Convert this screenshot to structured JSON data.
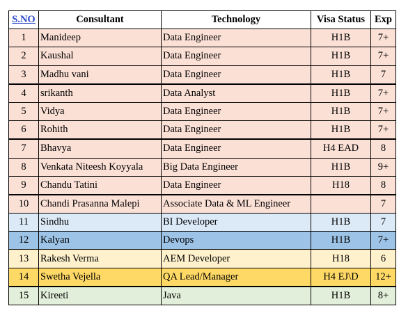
{
  "headers": {
    "sno": "S.NO",
    "consultant": "Consultant",
    "technology": "Technology",
    "visa": "Visa Status",
    "exp": "Exp"
  },
  "rows": [
    {
      "sno": "1",
      "name": "Manideep",
      "tech": "Data Engineer",
      "visa": "H1B",
      "exp": "7+",
      "color": "#fbe0d6"
    },
    {
      "sno": "2",
      "name": "Kaushal",
      "tech": "Data Engineer",
      "visa": "H1B",
      "exp": "7+",
      "color": "#fbe0d6"
    },
    {
      "sno": "3",
      "name": "Madhu vani",
      "tech": "Data Engineer",
      "visa": "H1B",
      "exp": "7",
      "color": "#fbe0d6"
    },
    {
      "sno": "4",
      "name": "srikanth",
      "tech": "Data Analyst",
      "visa": "H1B",
      "exp": "7+",
      "color": "#fbe0d6"
    },
    {
      "sno": "5",
      "name": "Vidya",
      "tech": "Data Engineer",
      "visa": "H1B",
      "exp": "7+",
      "color": "#fbe0d6"
    },
    {
      "sno": "6",
      "name": "Rohith",
      "tech": "Data Engineer",
      "visa": "H1B",
      "exp": "7+",
      "color": "#fbe0d6"
    },
    {
      "sno": "7",
      "name": "Bhavya",
      "tech": "Data Engineer",
      "visa": "H4 EAD",
      "exp": "8",
      "color": "#fbe0d6"
    },
    {
      "sno": "8",
      "name": "Venkata Niteesh Koyyala",
      "tech": "Big Data Engineer",
      "visa": "H1B",
      "exp": "9+",
      "color": "#fbe0d6"
    },
    {
      "sno": "9",
      "name": "Chandu Tatini",
      "tech": "Data Engineer",
      "visa": "H18",
      "exp": "8",
      "color": "#fbe0d6"
    },
    {
      "sno": "10",
      "name": "Chandi Prasanna Malepi",
      "tech": "Associate Data & ML Engineer",
      "visa": "",
      "exp": "7",
      "color": "#fbe0d6"
    },
    {
      "sno": "11",
      "name": "Sindhu",
      "tech": "BI Developer",
      "visa": "H1B",
      "exp": "7",
      "color": "#dce9f6"
    },
    {
      "sno": "12",
      "name": "Kalyan",
      "tech": "Devops",
      "visa": "H1B",
      "exp": "7+",
      "color": "#9dc3e6"
    },
    {
      "sno": "13",
      "name": "Rakesh Verma",
      "tech": "AEM Developer",
      "visa": "H18",
      "exp": "6",
      "color": "#fff1cc"
    },
    {
      "sno": "14",
      "name": "Swetha Vejella",
      "tech": "QA Lead/Manager",
      "visa": "H4 EJ\\D",
      "exp": "12+",
      "color": "#ffd966"
    },
    {
      "sno": "15",
      "name": "Kireeti",
      "tech": "Java",
      "visa": "H1B",
      "exp": "8+",
      "color": "#e2efda"
    }
  ]
}
